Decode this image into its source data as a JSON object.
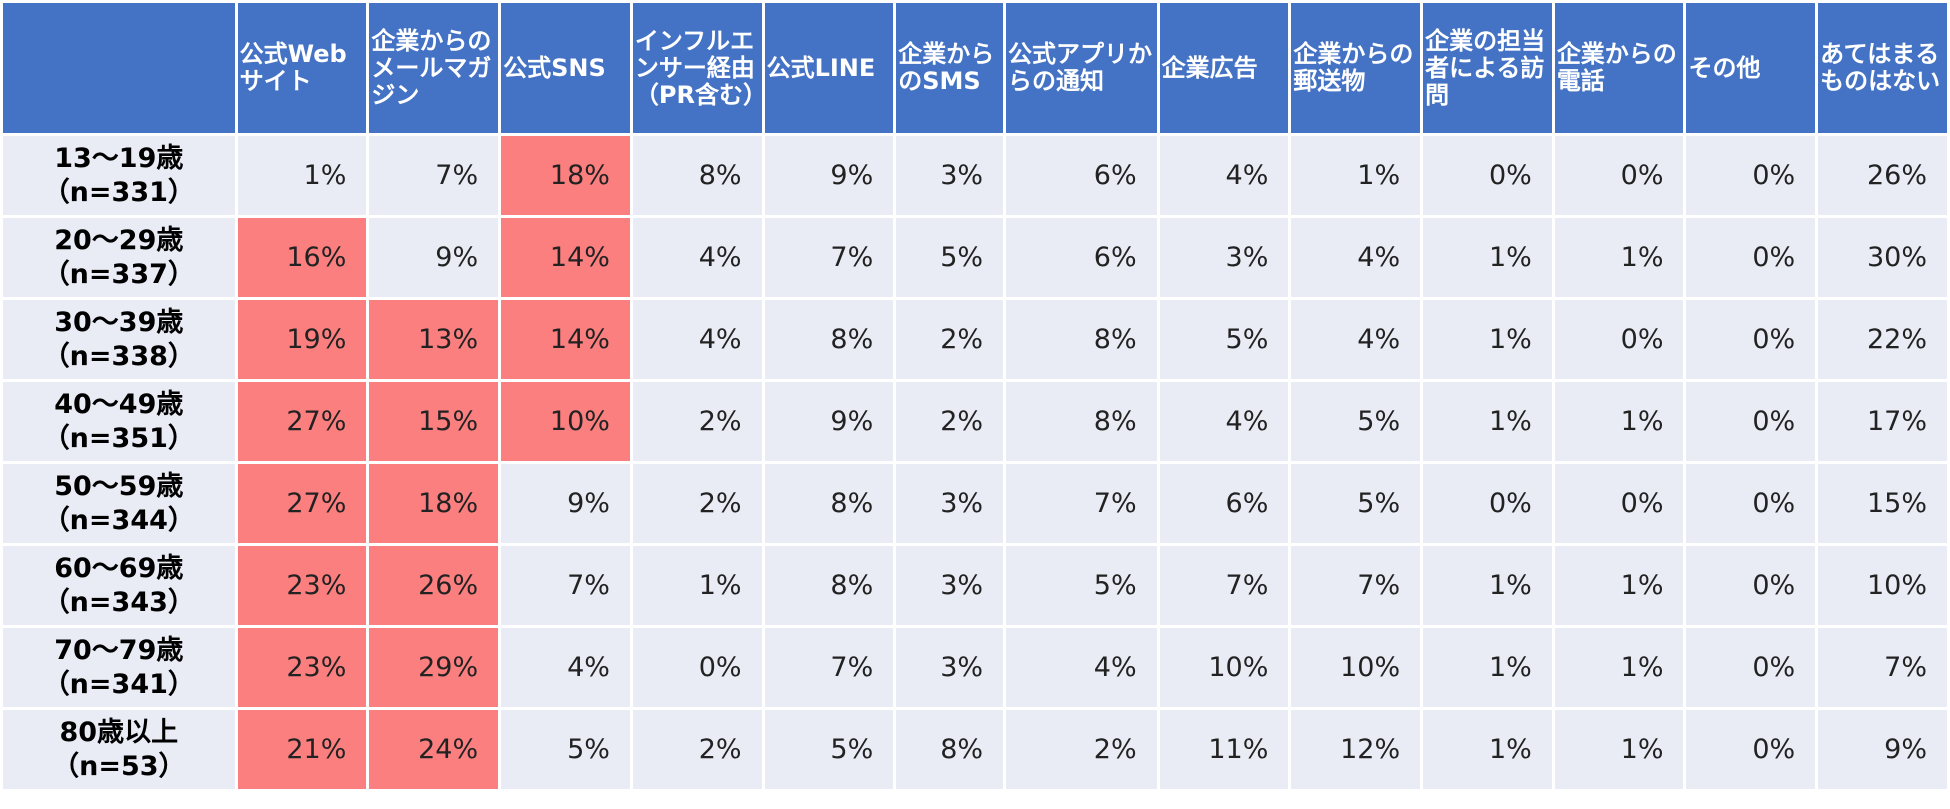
{
  "chart_data": {
    "type": "table",
    "highlight_color": "#fb7f7f",
    "header_color": "#4472c4",
    "cell_color": "#e9ebf5",
    "columns": [
      "公式Webサイト",
      "企業からのメールマガジン",
      "公式SNS",
      "インフルエンサー経由（PR含む）",
      "公式LINE",
      "企業からのSMS",
      "公式アプリからの通知",
      "企業広告",
      "企業からの郵送物",
      "企業の担当者による訪問",
      "企業からの電話",
      "その他",
      "あてはまるものはない"
    ],
    "rows": [
      {
        "age": "13～19歳",
        "n": "（n=331）",
        "values": [
          "1%",
          "7%",
          "18%",
          "8%",
          "9%",
          "3%",
          "6%",
          "4%",
          "1%",
          "0%",
          "0%",
          "0%",
          "26%"
        ],
        "highlight": [
          false,
          false,
          true,
          false,
          false,
          false,
          false,
          false,
          false,
          false,
          false,
          false,
          false
        ]
      },
      {
        "age": "20～29歳",
        "n": "（n=337）",
        "values": [
          "16%",
          "9%",
          "14%",
          "4%",
          "7%",
          "5%",
          "6%",
          "3%",
          "4%",
          "1%",
          "1%",
          "0%",
          "30%"
        ],
        "highlight": [
          true,
          false,
          true,
          false,
          false,
          false,
          false,
          false,
          false,
          false,
          false,
          false,
          false
        ]
      },
      {
        "age": "30～39歳",
        "n": "（n=338）",
        "values": [
          "19%",
          "13%",
          "14%",
          "4%",
          "8%",
          "2%",
          "8%",
          "5%",
          "4%",
          "1%",
          "0%",
          "0%",
          "22%"
        ],
        "highlight": [
          true,
          true,
          true,
          false,
          false,
          false,
          false,
          false,
          false,
          false,
          false,
          false,
          false
        ]
      },
      {
        "age": "40～49歳",
        "n": "（n=351）",
        "values": [
          "27%",
          "15%",
          "10%",
          "2%",
          "9%",
          "2%",
          "8%",
          "4%",
          "5%",
          "1%",
          "1%",
          "0%",
          "17%"
        ],
        "highlight": [
          true,
          true,
          true,
          false,
          false,
          false,
          false,
          false,
          false,
          false,
          false,
          false,
          false
        ]
      },
      {
        "age": "50～59歳",
        "n": "（n=344）",
        "values": [
          "27%",
          "18%",
          "9%",
          "2%",
          "8%",
          "3%",
          "7%",
          "6%",
          "5%",
          "0%",
          "0%",
          "0%",
          "15%"
        ],
        "highlight": [
          true,
          true,
          false,
          false,
          false,
          false,
          false,
          false,
          false,
          false,
          false,
          false,
          false
        ]
      },
      {
        "age": "60～69歳",
        "n": "（n=343）",
        "values": [
          "23%",
          "26%",
          "7%",
          "1%",
          "8%",
          "3%",
          "5%",
          "7%",
          "7%",
          "1%",
          "1%",
          "0%",
          "10%"
        ],
        "highlight": [
          true,
          true,
          false,
          false,
          false,
          false,
          false,
          false,
          false,
          false,
          false,
          false,
          false
        ]
      },
      {
        "age": "70～79歳",
        "n": "（n=341）",
        "values": [
          "23%",
          "29%",
          "4%",
          "0%",
          "7%",
          "3%",
          "4%",
          "10%",
          "10%",
          "1%",
          "1%",
          "0%",
          "7%"
        ],
        "highlight": [
          true,
          true,
          false,
          false,
          false,
          false,
          false,
          false,
          false,
          false,
          false,
          false,
          false
        ]
      },
      {
        "age": "80歳以上",
        "n": "（n=53）",
        "values": [
          "21%",
          "24%",
          "5%",
          "2%",
          "5%",
          "8%",
          "2%",
          "11%",
          "12%",
          "1%",
          "1%",
          "0%",
          "9%"
        ],
        "highlight": [
          true,
          true,
          false,
          false,
          false,
          false,
          false,
          false,
          false,
          false,
          false,
          false,
          false
        ]
      }
    ]
  }
}
